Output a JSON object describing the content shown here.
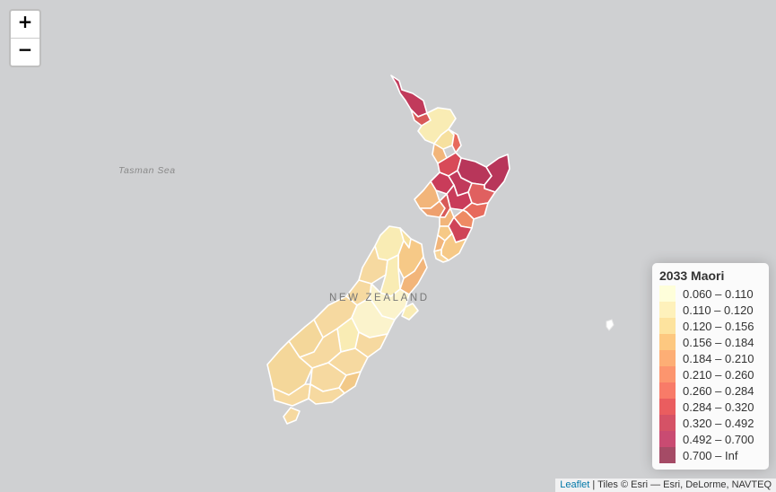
{
  "zoom": {
    "in_label": "+",
    "out_label": "−"
  },
  "labels": {
    "sea": "Tasman Sea",
    "country": "NEW ZEALAND"
  },
  "legend": {
    "title": "2033 Maori",
    "items": [
      {
        "label": "0.060 – 0.110",
        "color": "#ffffcc"
      },
      {
        "label": "0.110 – 0.120",
        "color": "#ffeda0"
      },
      {
        "label": "0.120 – 0.156",
        "color": "#fed976"
      },
      {
        "label": "0.156 – 0.184",
        "color": "#feb24c"
      },
      {
        "label": "0.184 – 0.210",
        "color": "#fd8d3c"
      },
      {
        "label": "0.210 – 0.260",
        "color": "#fc6a32"
      },
      {
        "label": "0.260 – 0.284",
        "color": "#f7452a"
      },
      {
        "label": "0.284 – 0.320",
        "color": "#e31a1c"
      },
      {
        "label": "0.320 – 0.492",
        "color": "#c40a26"
      },
      {
        "label": "0.492 – 0.700",
        "color": "#b30038"
      },
      {
        "label": "0.700 – Inf",
        "color": "#800026"
      }
    ]
  },
  "attribution": {
    "link": "Leaflet",
    "text": " | Tiles © Esri — Esri, DeLorme, NAVTEQ"
  }
}
